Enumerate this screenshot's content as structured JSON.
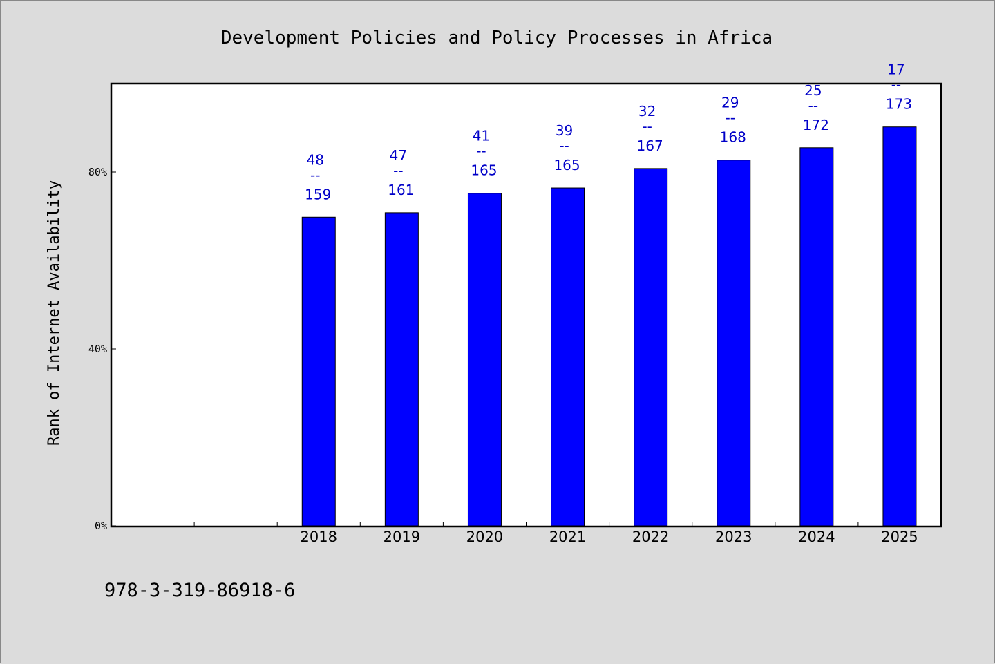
{
  "chart_data": {
    "type": "bar",
    "title": "Development Policies and Policy Processes in Africa",
    "xlabel": "",
    "ylabel": "Rank of Internet Availability",
    "ylim": [
      0,
      100
    ],
    "ytick_values": [
      0,
      40,
      80
    ],
    "ytick_labels": [
      "0%",
      "40%",
      "80%"
    ],
    "xtick_labels": [
      "",
      "",
      "2018",
      "2019",
      "2020",
      "2021",
      "2022",
      "2023",
      "2024",
      "2025"
    ],
    "categories": [
      "",
      "",
      "2018",
      "2019",
      "2020",
      "2021",
      "2022",
      "2023",
      "2024",
      "2025"
    ],
    "values": [
      null,
      null,
      69.8,
      70.8,
      75.2,
      76.4,
      80.8,
      82.7,
      85.5,
      90.2
    ],
    "annotations": [
      null,
      null,
      {
        "rank": "48",
        "sep": "--",
        "total": "159"
      },
      {
        "rank": "47",
        "sep": "--",
        "total": "161"
      },
      {
        "rank": "41",
        "sep": "--",
        "total": "165"
      },
      {
        "rank": "39",
        "sep": "--",
        "total": "165"
      },
      {
        "rank": "32",
        "sep": "--",
        "total": "167"
      },
      {
        "rank": "29",
        "sep": "--",
        "total": "168"
      },
      {
        "rank": "25",
        "sep": "--",
        "total": "172"
      },
      {
        "rank": "17",
        "sep": "--",
        "total": "173"
      }
    ],
    "bar_color": "#0000ff",
    "annotation_color": "#0000c8",
    "grid": false,
    "legend": "none"
  },
  "footer": {
    "isbn": "978-3-319-86918-6"
  }
}
